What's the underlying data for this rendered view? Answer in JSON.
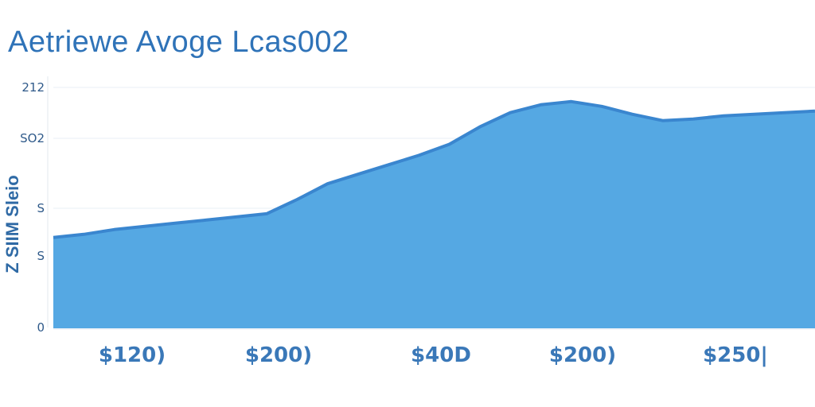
{
  "chart_data": {
    "type": "area",
    "title": "Aetriewe Avoge Lcas002",
    "ylabel": "Z SIIM Sleio",
    "xlabel": "",
    "yticks": [
      "212",
      "SO2",
      "S",
      "S",
      "0"
    ],
    "xtick_labels": [
      "$120)",
      "$200)",
      "$40D",
      "$200)",
      "$250|"
    ],
    "x": [
      0,
      4,
      8,
      12,
      16,
      20,
      24,
      28,
      32,
      36,
      40,
      44,
      48,
      52,
      56,
      60,
      64,
      68,
      72,
      76,
      80,
      84,
      88,
      92,
      96,
      100
    ],
    "values": [
      0.58,
      0.6,
      0.63,
      0.65,
      0.67,
      0.69,
      0.71,
      0.73,
      0.82,
      0.92,
      0.98,
      1.04,
      1.1,
      1.17,
      1.28,
      1.37,
      1.42,
      1.44,
      1.41,
      1.36,
      1.32,
      1.33,
      1.35,
      1.36,
      1.37,
      1.38
    ],
    "xlim": [
      0,
      100
    ],
    "ylim": [
      0,
      1.6
    ],
    "grid": true,
    "colors": {
      "fill": "#55a8e3",
      "line": "#3a86cf",
      "title": "#2f73b8",
      "grid": "#e9eff5"
    }
  }
}
